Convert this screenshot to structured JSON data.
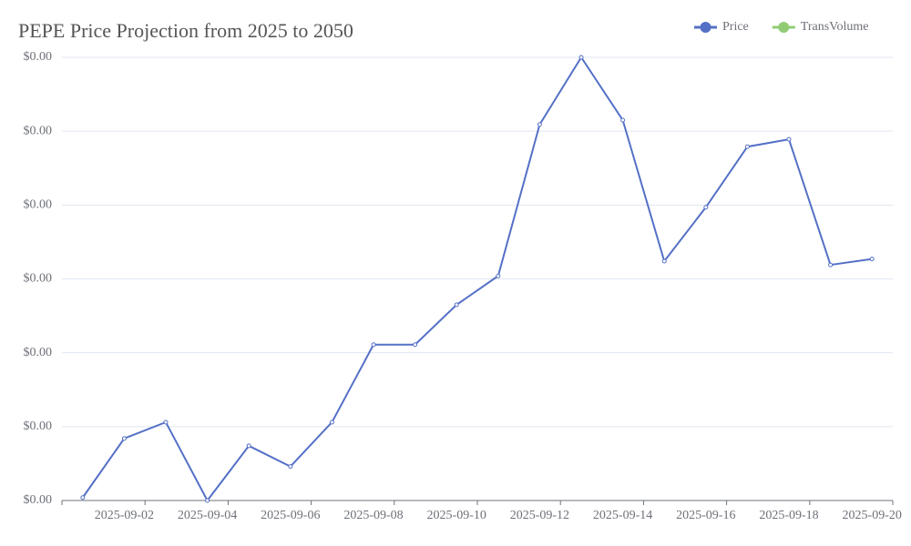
{
  "chart_data": {
    "type": "line",
    "title": "PEPE Price Projection from 2025 to 2050",
    "categories": [
      null,
      "2025-09-02",
      null,
      "2025-09-04",
      null,
      "2025-09-06",
      null,
      "2025-09-08",
      null,
      "2025-09-10",
      null,
      "2025-09-12",
      null,
      "2025-09-14",
      null,
      "2025-09-16",
      null,
      "2025-09-18",
      null,
      "2025-09-20"
    ],
    "series": [
      {
        "name": "Price",
        "color": "#5470c6",
        "values": [
          9.404e-06,
          9.484e-06,
          9.506e-06,
          9.4e-06,
          9.474e-06,
          9.446e-06,
          9.506e-06,
          9.611e-06,
          9.611e-06,
          9.665e-06,
          9.704e-06,
          9.909e-06,
          1e-05,
          9.915e-06,
          9.724e-06,
          9.797e-06,
          9.879e-06,
          9.889e-06,
          9.719e-06,
          9.727e-06
        ]
      },
      {
        "name": "TransVolume",
        "color": "#91cc75",
        "values": [
          null,
          null,
          null,
          null,
          null,
          null,
          null,
          null,
          null,
          null,
          null,
          null,
          null,
          null,
          null,
          null,
          null,
          null,
          null,
          null
        ]
      }
    ],
    "ylim": [
      9.4e-06,
      1e-05
    ],
    "yticks": [
      {
        "value": 9.4e-06,
        "label": "$0.00"
      },
      {
        "value": 9.5e-06,
        "label": "$0.00"
      },
      {
        "value": 9.6e-06,
        "label": "$0.00"
      },
      {
        "value": 9.7e-06,
        "label": "$0.00"
      },
      {
        "value": 9.8e-06,
        "label": "$0.00"
      },
      {
        "value": 9.9e-06,
        "label": "$0.00"
      },
      {
        "value": 1e-05,
        "label": "$0.00"
      }
    ],
    "grid": true,
    "legend": "top-right"
  }
}
